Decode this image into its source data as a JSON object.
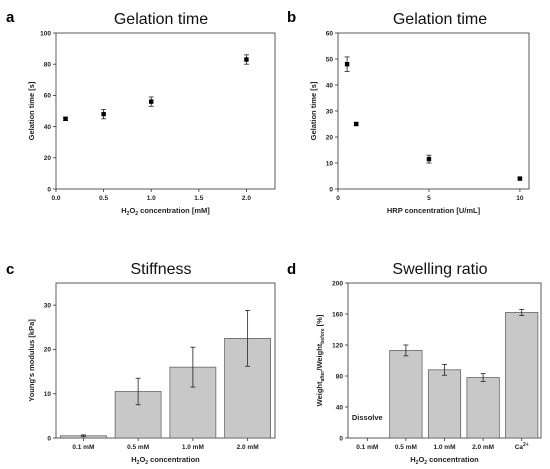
{
  "chart_data": [
    {
      "panel": "a",
      "type": "scatter",
      "title": "Gelation time",
      "xlabel": "H2O2 concentration [mM]",
      "xlabel_parts": [
        {
          "t": "H",
          "sub": false
        },
        {
          "t": "2",
          "sub": true
        },
        {
          "t": "O",
          "sub": false
        },
        {
          "t": "2",
          "sub": true
        },
        {
          "t": " concentration [mM]",
          "sub": false
        }
      ],
      "ylabel": "Gelation time [s]",
      "xlim": [
        0.0,
        2.3
      ],
      "ylim": [
        0,
        100
      ],
      "xticks": [
        0.0,
        0.5,
        1.0,
        1.5,
        2.0
      ],
      "xtick_labels": [
        "0.0",
        "0.5",
        "1.0",
        "1.5",
        "2.0"
      ],
      "yticks": [
        0,
        20,
        40,
        60,
        80,
        100
      ],
      "ytick_labels": [
        "0",
        "20",
        "40",
        "60",
        "80",
        "100"
      ],
      "points": [
        {
          "x": 0.1,
          "y": 45,
          "err": 1
        },
        {
          "x": 0.5,
          "y": 48,
          "err": 3
        },
        {
          "x": 1.0,
          "y": 56,
          "err": 3
        },
        {
          "x": 2.0,
          "y": 83,
          "err": 3
        }
      ]
    },
    {
      "panel": "b",
      "type": "scatter",
      "title": "Gelation time",
      "xlabel": "HRP concentration [U/mL]",
      "xlabel_parts": [
        {
          "t": "HRP concentration [U/mL]",
          "sub": false
        }
      ],
      "ylabel": "Gelation time [s]",
      "xlim": [
        0,
        10.5
      ],
      "ylim": [
        0,
        60
      ],
      "xticks": [
        0,
        5,
        10
      ],
      "xtick_labels": [
        "0",
        "5",
        "10"
      ],
      "yticks": [
        0,
        10,
        20,
        30,
        40,
        50,
        60
      ],
      "ytick_labels": [
        "0",
        "10",
        "20",
        "30",
        "40",
        "50",
        "60"
      ],
      "points": [
        {
          "x": 0.5,
          "y": 48,
          "err": 2.8
        },
        {
          "x": 1.0,
          "y": 25,
          "err": 0.5
        },
        {
          "x": 5.0,
          "y": 11.5,
          "err": 1.5
        },
        {
          "x": 10.0,
          "y": 4,
          "err": 0.5
        }
      ]
    },
    {
      "panel": "c",
      "type": "bar",
      "title": "Stiffness",
      "xlabel": "H2O2 concentration",
      "xlabel_parts": [
        {
          "t": "H",
          "sub": false
        },
        {
          "t": "2",
          "sub": true
        },
        {
          "t": "O",
          "sub": false
        },
        {
          "t": "2",
          "sub": true
        },
        {
          "t": " concentration",
          "sub": false
        }
      ],
      "ylabel": "Young's modulus [kPa]",
      "ylabel_parts": [
        {
          "t": "Young's modulus [kPa]",
          "sub": false
        }
      ],
      "ylim": [
        0,
        35
      ],
      "yticks": [
        0,
        10,
        20,
        30
      ],
      "ytick_labels": [
        "0",
        "10",
        "20",
        "30"
      ],
      "categories": [
        "0.1 mM",
        "0.5 mM",
        "1.0 mM",
        "2.0 mM"
      ],
      "category_labels": [
        [
          {
            "t": "0.1 mM",
            "sub": false
          }
        ],
        [
          {
            "t": "0.5 mM",
            "sub": false
          }
        ],
        [
          {
            "t": "1.0 mM",
            "sub": false
          }
        ],
        [
          {
            "t": "2.0 mM",
            "sub": false
          }
        ]
      ],
      "values": [
        0.5,
        10.5,
        16.0,
        22.5
      ],
      "errors": [
        0.2,
        3.0,
        4.5,
        6.3
      ],
      "annotation": ""
    },
    {
      "panel": "d",
      "type": "bar",
      "title": "Swelling ratio",
      "xlabel": "H2O2 concentration",
      "xlabel_parts": [
        {
          "t": "H",
          "sub": false
        },
        {
          "t": "2",
          "sub": true
        },
        {
          "t": "O",
          "sub": false
        },
        {
          "t": "2",
          "sub": true
        },
        {
          "t": " concentration",
          "sub": false
        }
      ],
      "ylabel": "Weightafter/Weightbefore [%]",
      "ylabel_parts": [
        {
          "t": "Weight",
          "sub": false
        },
        {
          "t": "after",
          "sub": true
        },
        {
          "t": "/Weight",
          "sub": false
        },
        {
          "t": "before",
          "sub": true
        },
        {
          "t": " [%]",
          "sub": false
        }
      ],
      "ylim": [
        0,
        200
      ],
      "yticks": [
        0,
        40,
        80,
        120,
        160,
        200
      ],
      "ytick_labels": [
        "0",
        "40",
        "80",
        "120",
        "160",
        "200"
      ],
      "categories": [
        "0.1 mM",
        "0.5 mM",
        "1.0 mM",
        "2.0 mM",
        "Ca2+"
      ],
      "category_labels": [
        [
          {
            "t": "0.1 mM",
            "sub": false
          }
        ],
        [
          {
            "t": "0.5 mM",
            "sub": false
          }
        ],
        [
          {
            "t": "1.0 mM",
            "sub": false
          }
        ],
        [
          {
            "t": "2.0 mM",
            "sub": false
          }
        ],
        [
          {
            "t": "Ca",
            "sub": false
          },
          {
            "t": "2+",
            "sup": true
          }
        ]
      ],
      "values": [
        0,
        113,
        88,
        78,
        162
      ],
      "errors": [
        0,
        7,
        7,
        5,
        4
      ],
      "annotation": "Dissolve"
    }
  ],
  "panel_labels": [
    "a",
    "b",
    "c",
    "d"
  ],
  "colors": {
    "bar_fill": "#c8c8c8",
    "bar_stroke": "#555555",
    "marker": "#000000",
    "axis": "#333333"
  }
}
